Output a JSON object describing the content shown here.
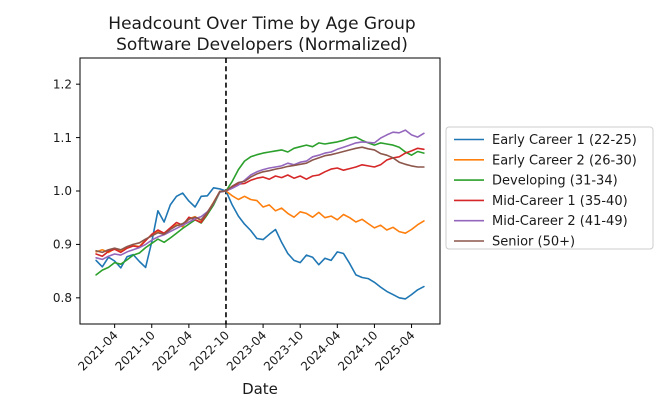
{
  "figure": {
    "background": "#ffffff",
    "text_color": "#1a1a1a",
    "spine_color": "#000000"
  },
  "chart_data": {
    "type": "line",
    "title": "Headcount Over Time by Age Group",
    "subtitle": "Software Developers (Normalized)",
    "xlabel": "Date",
    "ylabel": "",
    "grid": false,
    "legend_position": "right outside",
    "y_ticks": [
      0.8,
      0.9,
      1.0,
      1.1,
      1.2
    ],
    "ylim": [
      0.751,
      1.249
    ],
    "x_tick_labels": [
      "2021-04",
      "2021-10",
      "2022-04",
      "2022-10",
      "2023-04",
      "2023-10",
      "2024-04",
      "2024-10",
      "2025-04"
    ],
    "event_line": {
      "x_month": "2022-10",
      "color": "#000000",
      "style": "dashed",
      "note": "vertical reference line, all series normalized to 1.0 here"
    },
    "x": [
      "2021-01",
      "2021-02",
      "2021-03",
      "2021-04",
      "2021-05",
      "2021-06",
      "2021-07",
      "2021-08",
      "2021-09",
      "2021-10",
      "2021-11",
      "2021-12",
      "2022-01",
      "2022-02",
      "2022-03",
      "2022-04",
      "2022-05",
      "2022-06",
      "2022-07",
      "2022-08",
      "2022-09",
      "2022-10",
      "2022-11",
      "2022-12",
      "2023-01",
      "2023-02",
      "2023-03",
      "2023-04",
      "2023-05",
      "2023-06",
      "2023-07",
      "2023-08",
      "2023-09",
      "2023-10",
      "2023-11",
      "2023-12",
      "2024-01",
      "2024-02",
      "2024-03",
      "2024-04",
      "2024-05",
      "2024-06",
      "2024-07",
      "2024-08",
      "2024-09",
      "2024-10",
      "2024-11",
      "2024-12",
      "2025-01",
      "2025-02",
      "2025-03",
      "2025-04",
      "2025-05",
      "2025-06"
    ],
    "series": [
      {
        "name": "Early Career 1 (22-25)",
        "color": "#1f77b4",
        "values": [
          0.87,
          0.858,
          0.876,
          0.869,
          0.856,
          0.877,
          0.881,
          0.868,
          0.857,
          0.905,
          0.963,
          0.942,
          0.974,
          0.99,
          0.996,
          0.981,
          0.97,
          0.99,
          0.991,
          1.006,
          1.004,
          1.0,
          0.974,
          0.953,
          0.938,
          0.926,
          0.911,
          0.909,
          0.919,
          0.928,
          0.904,
          0.883,
          0.87,
          0.866,
          0.88,
          0.876,
          0.862,
          0.874,
          0.87,
          0.886,
          0.883,
          0.864,
          0.843,
          0.838,
          0.836,
          0.829,
          0.82,
          0.812,
          0.806,
          0.8,
          0.798,
          0.806,
          0.815,
          0.821
        ]
      },
      {
        "name": "Early Career 2 (26-30)",
        "color": "#ff7f0e",
        "values": [
          0.886,
          0.89,
          0.885,
          0.892,
          0.888,
          0.895,
          0.898,
          0.896,
          0.909,
          0.917,
          0.924,
          0.921,
          0.929,
          0.937,
          0.933,
          0.948,
          0.952,
          0.944,
          0.96,
          0.979,
          0.999,
          1.0,
          0.991,
          0.984,
          0.99,
          0.984,
          0.982,
          0.97,
          0.974,
          0.963,
          0.968,
          0.958,
          0.951,
          0.961,
          0.958,
          0.951,
          0.96,
          0.95,
          0.953,
          0.946,
          0.956,
          0.95,
          0.942,
          0.947,
          0.939,
          0.931,
          0.936,
          0.927,
          0.932,
          0.924,
          0.921,
          0.928,
          0.937,
          0.944
        ]
      },
      {
        "name": "Developing (31-34)",
        "color": "#2ca02c",
        "values": [
          0.843,
          0.852,
          0.857,
          0.866,
          0.863,
          0.871,
          0.88,
          0.884,
          0.894,
          0.902,
          0.91,
          0.904,
          0.912,
          0.921,
          0.93,
          0.938,
          0.946,
          0.94,
          0.956,
          0.974,
          0.998,
          1.0,
          1.018,
          1.04,
          1.056,
          1.064,
          1.068,
          1.071,
          1.073,
          1.075,
          1.077,
          1.073,
          1.08,
          1.083,
          1.086,
          1.083,
          1.09,
          1.088,
          1.09,
          1.092,
          1.095,
          1.099,
          1.101,
          1.095,
          1.09,
          1.086,
          1.09,
          1.088,
          1.086,
          1.082,
          1.073,
          1.067,
          1.074,
          1.071
        ]
      },
      {
        "name": "Mid-Career 1 (35-40)",
        "color": "#d62728",
        "values": [
          0.882,
          0.878,
          0.887,
          0.891,
          0.885,
          0.893,
          0.897,
          0.895,
          0.907,
          0.919,
          0.927,
          0.921,
          0.931,
          0.941,
          0.936,
          0.951,
          0.946,
          0.941,
          0.959,
          0.977,
          0.999,
          1.0,
          1.008,
          1.013,
          1.014,
          1.02,
          1.024,
          1.026,
          1.022,
          1.028,
          1.025,
          1.03,
          1.024,
          1.028,
          1.022,
          1.028,
          1.03,
          1.036,
          1.041,
          1.043,
          1.039,
          1.042,
          1.045,
          1.049,
          1.047,
          1.045,
          1.049,
          1.058,
          1.062,
          1.064,
          1.071,
          1.075,
          1.08,
          1.078
        ]
      },
      {
        "name": "Mid-Career 2 (41-49)",
        "color": "#9467bd",
        "values": [
          0.875,
          0.872,
          0.878,
          0.882,
          0.88,
          0.886,
          0.89,
          0.894,
          0.9,
          0.908,
          0.914,
          0.918,
          0.924,
          0.93,
          0.936,
          0.942,
          0.948,
          0.952,
          0.961,
          0.977,
          0.998,
          1.0,
          1.005,
          1.011,
          1.02,
          1.03,
          1.036,
          1.04,
          1.043,
          1.045,
          1.047,
          1.052,
          1.049,
          1.054,
          1.056,
          1.064,
          1.067,
          1.071,
          1.073,
          1.078,
          1.082,
          1.086,
          1.09,
          1.092,
          1.091,
          1.09,
          1.099,
          1.105,
          1.11,
          1.109,
          1.114,
          1.105,
          1.101,
          1.108
        ]
      },
      {
        "name": "Senior (50+)",
        "color": "#8c564b",
        "values": [
          0.888,
          0.885,
          0.89,
          0.893,
          0.89,
          0.896,
          0.9,
          0.903,
          0.91,
          0.916,
          0.922,
          0.919,
          0.928,
          0.935,
          0.939,
          0.947,
          0.951,
          0.946,
          0.96,
          0.978,
          0.999,
          1.0,
          1.009,
          1.016,
          1.018,
          1.026,
          1.032,
          1.036,
          1.038,
          1.041,
          1.043,
          1.046,
          1.048,
          1.05,
          1.052,
          1.058,
          1.062,
          1.066,
          1.068,
          1.071,
          1.074,
          1.077,
          1.08,
          1.082,
          1.079,
          1.077,
          1.07,
          1.067,
          1.062,
          1.054,
          1.05,
          1.047,
          1.045,
          1.045
        ]
      }
    ]
  }
}
